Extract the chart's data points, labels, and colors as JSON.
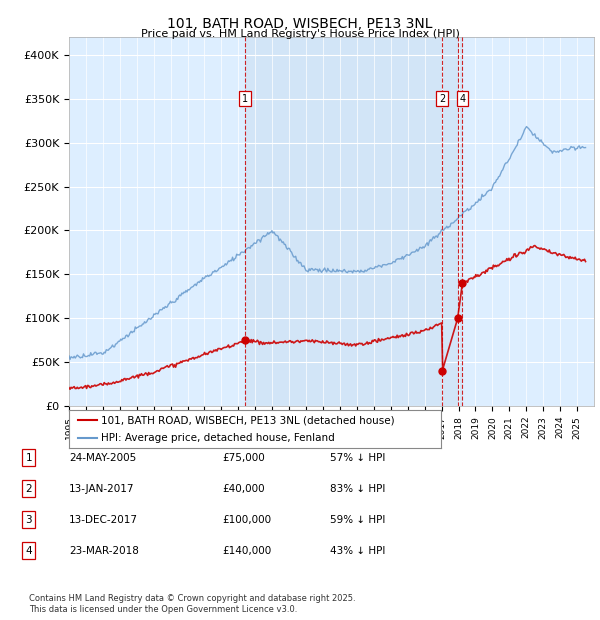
{
  "title": "101, BATH ROAD, WISBECH, PE13 3NL",
  "subtitle": "Price paid vs. HM Land Registry's House Price Index (HPI)",
  "ylim": [
    0,
    420000
  ],
  "yticks": [
    0,
    50000,
    100000,
    150000,
    200000,
    250000,
    300000,
    350000,
    400000
  ],
  "ytick_labels": [
    "£0",
    "£50K",
    "£100K",
    "£150K",
    "£200K",
    "£250K",
    "£300K",
    "£350K",
    "£400K"
  ],
  "plot_bg": "#ddeeff",
  "red_line_color": "#cc0000",
  "blue_line_color": "#6699cc",
  "vline_color": "#cc0000",
  "shade_x1": 2005.39,
  "shade_x2": 2018.23,
  "transaction_markers": [
    {
      "label": "1",
      "date_x": 2005.39,
      "price": 75000,
      "date_str": "24-MAY-2005",
      "show_box": true
    },
    {
      "label": "2",
      "date_x": 2017.04,
      "price": 40000,
      "date_str": "13-JAN-2017",
      "show_box": true
    },
    {
      "label": "3",
      "date_x": 2017.95,
      "price": 100000,
      "date_str": "13-DEC-2017",
      "show_box": false
    },
    {
      "label": "4",
      "date_x": 2018.23,
      "price": 140000,
      "date_str": "23-MAR-2018",
      "show_box": true
    }
  ],
  "legend_entries": [
    {
      "label": "101, BATH ROAD, WISBECH, PE13 3NL (detached house)",
      "color": "#cc0000"
    },
    {
      "label": "HPI: Average price, detached house, Fenland",
      "color": "#6699cc"
    }
  ],
  "table_rows": [
    [
      "1",
      "24-MAY-2005",
      "£75,000",
      "57% ↓ HPI"
    ],
    [
      "2",
      "13-JAN-2017",
      "£40,000",
      "83% ↓ HPI"
    ],
    [
      "3",
      "13-DEC-2017",
      "£100,000",
      "59% ↓ HPI"
    ],
    [
      "4",
      "23-MAR-2018",
      "£140,000",
      "43% ↓ HPI"
    ]
  ],
  "footer": "Contains HM Land Registry data © Crown copyright and database right 2025.\nThis data is licensed under the Open Government Licence v3.0.",
  "xmin": 1995,
  "xmax": 2026
}
